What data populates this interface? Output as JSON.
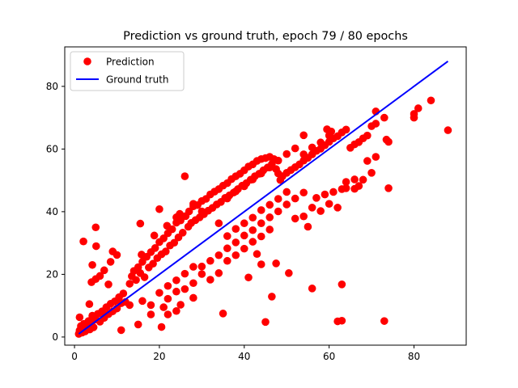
{
  "chart_data": {
    "type": "scatter",
    "title": "Prediction vs ground truth, epoch 79 / 80 epochs",
    "xlabel": "",
    "ylabel": "",
    "xlim": [
      -2.3,
      92.3
    ],
    "ylim": [
      -2.6,
      92.6
    ],
    "x_ticks": [
      0,
      20,
      40,
      60,
      80
    ],
    "y_ticks": [
      0,
      20,
      40,
      60,
      80
    ],
    "x_tick_labels": [
      "0",
      "20",
      "40",
      "60",
      "80"
    ],
    "y_tick_labels": [
      "0",
      "20",
      "40",
      "60",
      "80"
    ],
    "grid": false,
    "legend_position": "upper-left",
    "series": [
      {
        "name": "Prediction",
        "kind": "markers",
        "color": "#ff0000",
        "points": [
          [
            1,
            1
          ],
          [
            1.2,
            2.1
          ],
          [
            1.5,
            3.5
          ],
          [
            1.8,
            1.4
          ],
          [
            2,
            2.6
          ],
          [
            2.2,
            4.2
          ],
          [
            2.5,
            1.8
          ],
          [
            3,
            3.2
          ],
          [
            3.3,
            5.1
          ],
          [
            3.6,
            2.4
          ],
          [
            4,
            4.5
          ],
          [
            4.2,
            6.8
          ],
          [
            4.5,
            3.1
          ],
          [
            5,
            5.6
          ],
          [
            5.5,
            7.4
          ],
          [
            6,
            4.9
          ],
          [
            6.5,
            8.2
          ],
          [
            7,
            6.1
          ],
          [
            7.5,
            9.5
          ],
          [
            8,
            7.3
          ],
          [
            8.5,
            10.6
          ],
          [
            9,
            8.2
          ],
          [
            9.5,
            11.4
          ],
          [
            10,
            9.1
          ],
          [
            10.5,
            12.7
          ],
          [
            11,
            10.8
          ],
          [
            11.5,
            13.9
          ],
          [
            12,
            11.2
          ],
          [
            1.2,
            6.3
          ],
          [
            2.1,
            30.5
          ],
          [
            3.5,
            10.5
          ],
          [
            4.2,
            23
          ],
          [
            5,
            35
          ],
          [
            5.1,
            29
          ],
          [
            4,
            17.5
          ],
          [
            5,
            18.5
          ],
          [
            6,
            19.5
          ],
          [
            7,
            21.3
          ],
          [
            8,
            16.8
          ],
          [
            8.5,
            24
          ],
          [
            9,
            27.3
          ],
          [
            10,
            26.2
          ],
          [
            11,
            2.2
          ],
          [
            15,
            4
          ],
          [
            20.5,
            3.2
          ],
          [
            21,
            9.5
          ],
          [
            13,
            17
          ],
          [
            13.5,
            19.4
          ],
          [
            14,
            21.1
          ],
          [
            14.5,
            18.2
          ],
          [
            15,
            22.3
          ],
          [
            15.5,
            20.4
          ],
          [
            15.8,
            26.3
          ],
          [
            15.5,
            36.2
          ],
          [
            16,
            24
          ],
          [
            16.5,
            19.1
          ],
          [
            17,
            25.6
          ],
          [
            17.5,
            22.2
          ],
          [
            18,
            27.1
          ],
          [
            18.5,
            23.4
          ],
          [
            18.8,
            32.4
          ],
          [
            19,
            28.4
          ],
          [
            19.5,
            25.2
          ],
          [
            20,
            30.3
          ],
          [
            20.5,
            26.4
          ],
          [
            21,
            31.5
          ],
          [
            21.5,
            27.3
          ],
          [
            21.8,
            35.5
          ],
          [
            22,
            33.1
          ],
          [
            22.5,
            29.2
          ],
          [
            23,
            34.4
          ],
          [
            23.5,
            30.1
          ],
          [
            24,
            36.5
          ],
          [
            24.5,
            31.8
          ],
          [
            24.8,
            39.3
          ],
          [
            25,
            37.2
          ],
          [
            25.5,
            33.3
          ],
          [
            26,
            51.3
          ],
          [
            26.2,
            38.6
          ],
          [
            26.8,
            35.2
          ],
          [
            27,
            40.1
          ],
          [
            27.5,
            36.4
          ],
          [
            28,
            41.7
          ],
          [
            28.5,
            37.3
          ],
          [
            29,
            42.1
          ],
          [
            29.5,
            38.2
          ],
          [
            30,
            43.4
          ],
          [
            30.5,
            39.2
          ],
          [
            31,
            44.1
          ],
          [
            31.5,
            40.3
          ],
          [
            32,
            45.5
          ],
          [
            32.5,
            41.2
          ],
          [
            33,
            46.4
          ],
          [
            33.5,
            42.3
          ],
          [
            34,
            47.2
          ],
          [
            34.5,
            43.1
          ],
          [
            35,
            48.3
          ],
          [
            35.5,
            44.4
          ],
          [
            36,
            49.1
          ],
          [
            36.5,
            45.2
          ],
          [
            37,
            50.4
          ],
          [
            37.5,
            46.1
          ],
          [
            38,
            51.3
          ],
          [
            38.5,
            47.2
          ],
          [
            39,
            52.1
          ],
          [
            39.5,
            48.3
          ],
          [
            40,
            53.2
          ],
          [
            40.5,
            49.1
          ],
          [
            41,
            54.4
          ],
          [
            41.5,
            50.2
          ],
          [
            42,
            55.1
          ],
          [
            42.5,
            51.3
          ],
          [
            43,
            56.2
          ],
          [
            43.5,
            52.1
          ],
          [
            44,
            56.8
          ],
          [
            44.5,
            53.2
          ],
          [
            45,
            57.1
          ],
          [
            45.5,
            54.1
          ],
          [
            46,
            57.5
          ],
          [
            46.5,
            55.2
          ],
          [
            47,
            56.8
          ],
          [
            47.5,
            53.6
          ],
          [
            48,
            52.2
          ],
          [
            48.5,
            50.1
          ],
          [
            49,
            51.3
          ],
          [
            50,
            52.4
          ],
          [
            51,
            53.3
          ],
          [
            52,
            54.2
          ],
          [
            53,
            55.1
          ],
          [
            54,
            56.3
          ],
          [
            55,
            57.2
          ],
          [
            56,
            58.3
          ],
          [
            57,
            59.4
          ],
          [
            58,
            60.1
          ],
          [
            59,
            61.2
          ],
          [
            60,
            62.3
          ],
          [
            61,
            63.4
          ],
          [
            62,
            64.1
          ],
          [
            63,
            65.3
          ],
          [
            64,
            66.2
          ],
          [
            65,
            60.4
          ],
          [
            66,
            61.5
          ],
          [
            67,
            62.2
          ],
          [
            68,
            63.4
          ],
          [
            69,
            64.3
          ],
          [
            70,
            67.3
          ],
          [
            71,
            68.1
          ],
          [
            59.5,
            66.3
          ],
          [
            60.5,
            65.6
          ],
          [
            54,
            64.4
          ],
          [
            71,
            72
          ],
          [
            73,
            70
          ],
          [
            73.5,
            63
          ],
          [
            74,
            62.3
          ],
          [
            80,
            70
          ],
          [
            80,
            71.2
          ],
          [
            81,
            73
          ],
          [
            84,
            75.5
          ],
          [
            88,
            66
          ],
          [
            74,
            47.5
          ],
          [
            63,
            5.2
          ],
          [
            73,
            5.1
          ],
          [
            62,
            5
          ],
          [
            45,
            4.8
          ],
          [
            35,
            7.5
          ],
          [
            56,
            15.5
          ],
          [
            63,
            16.8
          ],
          [
            50.5,
            20.4
          ],
          [
            46.5,
            12.9
          ],
          [
            41,
            19
          ],
          [
            44,
            23.2
          ],
          [
            47.5,
            23.5
          ],
          [
            43,
            26.5
          ],
          [
            55,
            35.2
          ],
          [
            52,
            37.8
          ],
          [
            54,
            38.5
          ],
          [
            56,
            41.3
          ],
          [
            58,
            40.2
          ],
          [
            60,
            42.5
          ],
          [
            62,
            41.3
          ],
          [
            57,
            44.4
          ],
          [
            59,
            45.5
          ],
          [
            61,
            46.3
          ],
          [
            63,
            47.2
          ],
          [
            64,
            47.5
          ],
          [
            66,
            47.3
          ],
          [
            67,
            48.2
          ],
          [
            66,
            50.3
          ],
          [
            68,
            50.2
          ],
          [
            70,
            52.4
          ],
          [
            69,
            56.2
          ],
          [
            71,
            57.5
          ],
          [
            64,
            49.5
          ],
          [
            30,
            22.5
          ],
          [
            32,
            24.3
          ],
          [
            34,
            26.1
          ],
          [
            36,
            28.3
          ],
          [
            38,
            30.2
          ],
          [
            40,
            32.4
          ],
          [
            42,
            34.1
          ],
          [
            44,
            36.3
          ],
          [
            46,
            38.2
          ],
          [
            48,
            40.1
          ],
          [
            50,
            42.3
          ],
          [
            52,
            44.2
          ],
          [
            54,
            46.1
          ],
          [
            22,
            12.2
          ],
          [
            24,
            14.5
          ],
          [
            26,
            15.3
          ],
          [
            28,
            17.2
          ],
          [
            30,
            20.1
          ],
          [
            32,
            18.3
          ],
          [
            34,
            20.4
          ],
          [
            36,
            24.3
          ],
          [
            38,
            26.1
          ],
          [
            40,
            28.2
          ],
          [
            42,
            30.4
          ],
          [
            44,
            32.1
          ],
          [
            46,
            34.3
          ],
          [
            18,
            10.2
          ],
          [
            20,
            14.1
          ],
          [
            22,
            16.3
          ],
          [
            24,
            18.1
          ],
          [
            26,
            20.2
          ],
          [
            28,
            22.4
          ],
          [
            25,
            10.3
          ],
          [
            28,
            12.5
          ],
          [
            24,
            8.3
          ],
          [
            22,
            7.2
          ],
          [
            18,
            7.2
          ],
          [
            16,
            11.5
          ],
          [
            13,
            10.2
          ],
          [
            36,
            44.2
          ],
          [
            38,
            46.5
          ],
          [
            40,
            48.1
          ],
          [
            42,
            50.3
          ],
          [
            44,
            52.2
          ],
          [
            46,
            54.1
          ],
          [
            48,
            56.3
          ],
          [
            50,
            58.4
          ],
          [
            52,
            60.2
          ],
          [
            54,
            58.3
          ],
          [
            56,
            60.5
          ],
          [
            58,
            62.1
          ],
          [
            60,
            64.3
          ],
          [
            20,
            40.8
          ],
          [
            24,
            38.2
          ],
          [
            28,
            42.5
          ],
          [
            30,
            40.1
          ],
          [
            34,
            36.3
          ],
          [
            36,
            32.2
          ],
          [
            38,
            34.5
          ],
          [
            40,
            36.3
          ],
          [
            42,
            38.1
          ],
          [
            44,
            40.5
          ],
          [
            46,
            42.2
          ],
          [
            48,
            44.1
          ],
          [
            50,
            46.3
          ]
        ]
      },
      {
        "name": "Ground truth",
        "kind": "line",
        "color": "#0000ff",
        "points": [
          [
            1,
            1
          ],
          [
            88,
            88
          ]
        ]
      }
    ]
  }
}
